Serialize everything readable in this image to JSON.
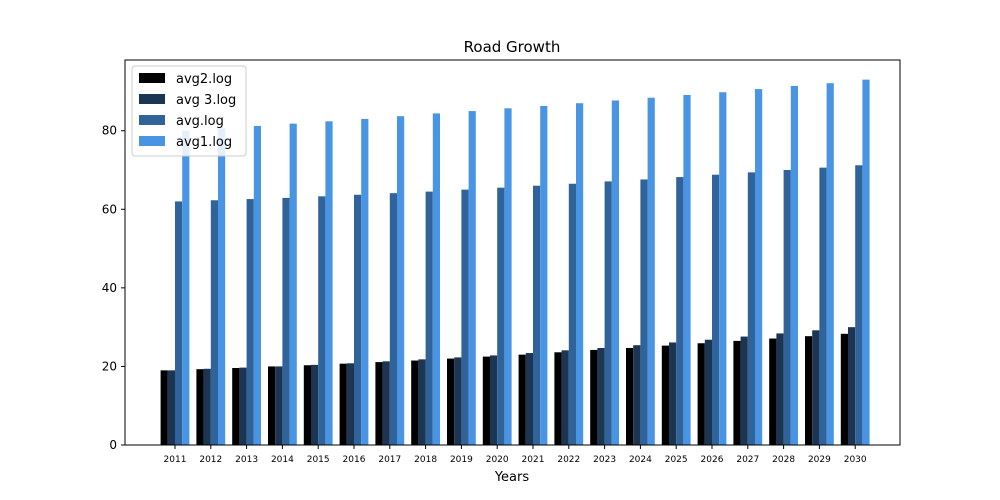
{
  "chart_data": {
    "type": "bar",
    "title": "Road Growth",
    "xlabel": "Years",
    "ylabel": "",
    "ylim": [
      0,
      98
    ],
    "yticks": [
      0,
      20,
      40,
      60,
      80
    ],
    "categories": [
      "2011",
      "2012",
      "2013",
      "2014",
      "2015",
      "2016",
      "2017",
      "2018",
      "2019",
      "2020",
      "2021",
      "2022",
      "2023",
      "2024",
      "2025",
      "2026",
      "2027",
      "2028",
      "2029",
      "2030"
    ],
    "series": [
      {
        "name": "avg2.log",
        "color": "#000000",
        "values": [
          19.0,
          19.3,
          19.6,
          20.0,
          20.3,
          20.7,
          21.1,
          21.5,
          22.0,
          22.5,
          23.0,
          23.6,
          24.2,
          24.7,
          25.3,
          25.9,
          26.5,
          27.1,
          27.7,
          28.3
        ]
      },
      {
        "name": "avg 3.log",
        "color": "#1b3553",
        "values": [
          19.0,
          19.4,
          19.7,
          20.0,
          20.4,
          20.8,
          21.3,
          21.8,
          22.3,
          22.8,
          23.4,
          24.1,
          24.7,
          25.4,
          26.1,
          26.8,
          27.6,
          28.4,
          29.2,
          30.0
        ]
      },
      {
        "name": "avg.log",
        "color": "#2f6399",
        "values": [
          62.0,
          62.3,
          62.6,
          62.9,
          63.3,
          63.7,
          64.1,
          64.5,
          65.0,
          65.5,
          66.0,
          66.5,
          67.1,
          67.6,
          68.2,
          68.8,
          69.4,
          70.0,
          70.6,
          71.2
        ]
      },
      {
        "name": "avg1.log",
        "color": "#4a95e3",
        "values": [
          80.0,
          80.6,
          81.2,
          81.8,
          82.4,
          83.0,
          83.7,
          84.4,
          85.0,
          85.7,
          86.3,
          87.0,
          87.7,
          88.4,
          89.1,
          89.8,
          90.6,
          91.4,
          92.1,
          93.0
        ]
      }
    ],
    "legend_position": "top-left",
    "grid": false
  }
}
